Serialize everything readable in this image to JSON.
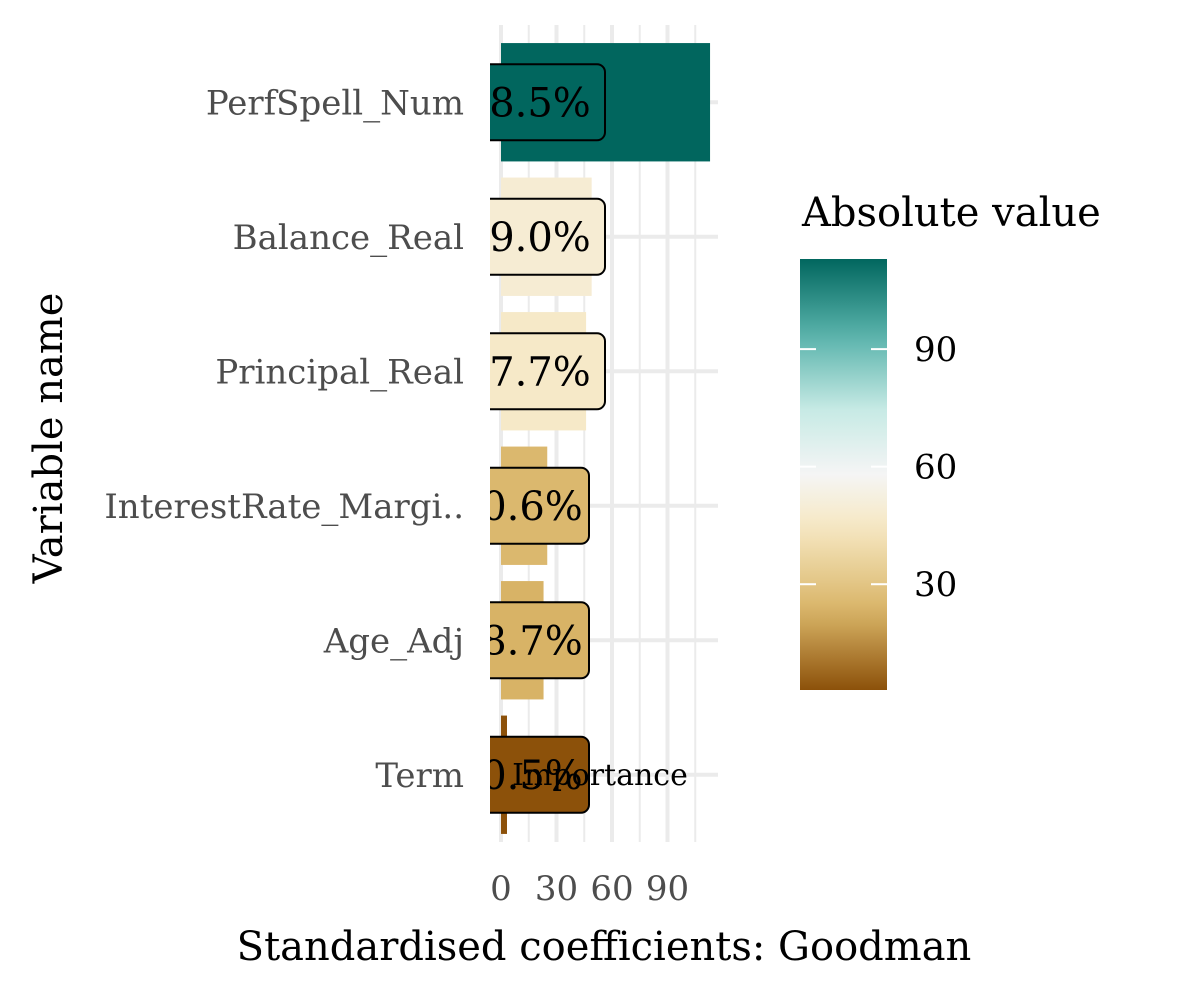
{
  "chart_data": {
    "type": "bar",
    "orientation": "horizontal",
    "categories": [
      "PerfSpell_Num",
      "Balance_Real",
      "Principal_Real",
      "InterestRate_Margi..",
      "Age_Adj",
      "Term"
    ],
    "values": [
      113,
      49,
      46,
      25,
      23,
      3
    ],
    "labels": [
      "8.5%",
      "9.0%",
      "7.7%",
      "0.6%",
      "8.7%",
      "0.5%"
    ],
    "overlay_text": "Importance",
    "xlabel": "Standardised coefficients: Goodman",
    "ylabel": "Variable name",
    "xticks": [
      0,
      30,
      60,
      90
    ],
    "xlim": [
      -5,
      118
    ],
    "grid": true,
    "legend": {
      "title": "Absolute value",
      "ticks": [
        30,
        60,
        90
      ],
      "range": [
        3,
        113
      ],
      "placement": "right"
    },
    "colors": {
      "low": "#8c510a",
      "low_mid": "#d8b365",
      "mid_low": "#f6e8c3",
      "mid": "#f5f5f5",
      "mid_high": "#c7eae5",
      "high_mid": "#5ab4ac",
      "high": "#01665e"
    }
  }
}
